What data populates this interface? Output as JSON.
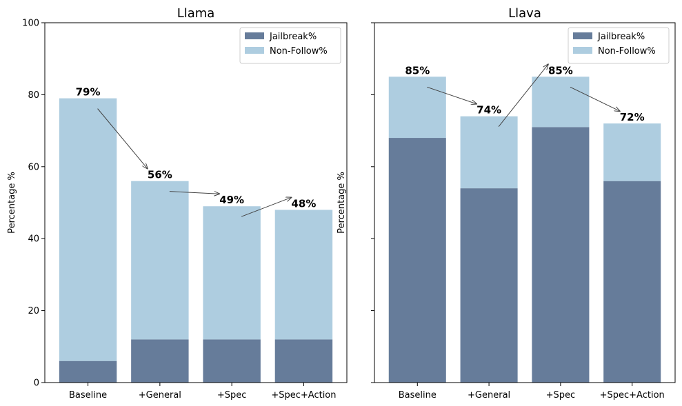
{
  "colors": {
    "jailbreak": "#667c9a",
    "non_follow": "#aecde0",
    "arrow": "#444444"
  },
  "chart_data": [
    {
      "type": "bar",
      "stacked": true,
      "title": "Llama",
      "xlabel": "",
      "ylabel": "Percentage %",
      "ylim": [
        0,
        100
      ],
      "yticks": [
        0,
        20,
        40,
        60,
        80,
        100
      ],
      "show_ytick_labels": true,
      "categories": [
        "Baseline",
        "+General",
        "+Spec",
        "+Spec+Action"
      ],
      "series": [
        {
          "name": "Jailbreak%",
          "values": [
            6,
            12,
            12,
            12
          ]
        },
        {
          "name": "Non-Follow%",
          "values": [
            73,
            44,
            37,
            36
          ]
        }
      ],
      "totals": [
        79,
        56,
        49,
        48
      ],
      "total_labels": [
        "79%",
        "56%",
        "49%",
        "48%"
      ],
      "legend": "top-right"
    },
    {
      "type": "bar",
      "stacked": true,
      "title": "Llava",
      "xlabel": "",
      "ylabel": "Percentage %",
      "ylim": [
        0,
        100
      ],
      "yticks": [
        0,
        20,
        40,
        60,
        80,
        100
      ],
      "show_ytick_labels": false,
      "categories": [
        "Baseline",
        "+General",
        "+Spec",
        "+Spec+Action"
      ],
      "series": [
        {
          "name": "Jailbreak%",
          "values": [
            68,
            54,
            71,
            56
          ]
        },
        {
          "name": "Non-Follow%",
          "values": [
            17,
            20,
            14,
            16
          ]
        }
      ],
      "totals": [
        85,
        74,
        85,
        72
      ],
      "total_labels": [
        "85%",
        "74%",
        "85%",
        "72%"
      ],
      "legend": "top-right"
    }
  ]
}
